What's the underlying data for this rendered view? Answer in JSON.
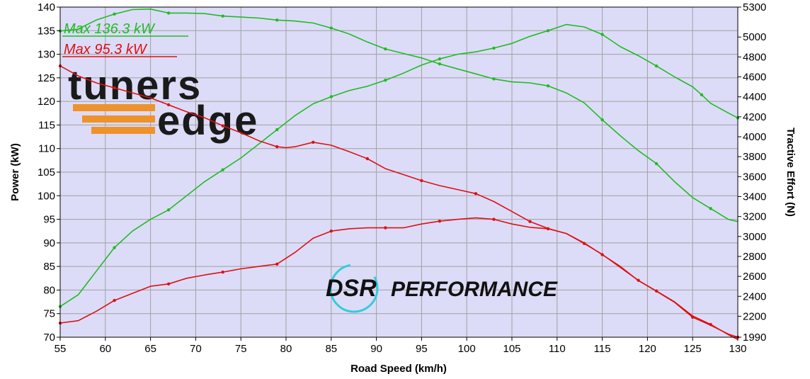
{
  "chart_data": {
    "type": "line",
    "xlabel": "Road Speed (km/h)",
    "ylabel": "Power (kW)",
    "y2label": "Tractive Effort (N)",
    "xlim": [
      55,
      130
    ],
    "ylim": [
      70,
      140
    ],
    "y2lim": [
      1990,
      5300
    ],
    "x_ticks": [
      55,
      60,
      65,
      70,
      75,
      80,
      85,
      90,
      95,
      100,
      105,
      110,
      115,
      120,
      125,
      130
    ],
    "y_ticks": [
      70,
      75,
      80,
      85,
      90,
      95,
      100,
      105,
      110,
      115,
      120,
      125,
      130,
      135,
      140
    ],
    "y2_ticks": [
      {
        "value": 1990,
        "label": "1990"
      },
      {
        "value": 2200,
        "label": "2200"
      },
      {
        "value": 2400,
        "label": "2400"
      },
      {
        "value": 2600,
        "label": "2600"
      },
      {
        "value": 2800,
        "label": "2800"
      },
      {
        "value": 3000,
        "label": "3000"
      },
      {
        "value": 3200,
        "label": "3200"
      },
      {
        "value": 3400,
        "label": "3400"
      },
      {
        "value": 3600,
        "label": "3600"
      },
      {
        "value": 3800,
        "label": "3800"
      },
      {
        "value": 4000,
        "label": "4000"
      },
      {
        "value": 4200,
        "label": "4200"
      },
      {
        "value": 4400,
        "label": "4400"
      },
      {
        "value": 4600,
        "label": "4600"
      },
      {
        "value": 4800,
        "label": "4800"
      },
      {
        "value": 5000,
        "label": "5000"
      },
      {
        "value": 5300,
        "label": "5300"
      }
    ],
    "grid": true,
    "annotations": [
      {
        "text": "Max 136.3 kW",
        "color": "#22bb22"
      },
      {
        "text": "Max 95.3 kW",
        "color": "#dd1111"
      }
    ],
    "series": [
      {
        "color": "#22bb22",
        "axis": "left",
        "kind": "power",
        "points": [
          [
            55,
            76.5
          ],
          [
            57,
            79
          ],
          [
            59,
            84
          ],
          [
            61,
            89
          ],
          [
            63,
            92.5
          ],
          [
            65,
            95
          ],
          [
            67,
            97
          ],
          [
            69,
            100
          ],
          [
            71,
            103
          ],
          [
            73,
            105.5
          ],
          [
            75,
            108
          ],
          [
            77,
            111
          ],
          [
            79,
            114
          ],
          [
            81,
            117
          ],
          [
            83,
            119.5
          ],
          [
            85,
            121
          ],
          [
            87,
            122.3
          ],
          [
            89,
            123.2
          ],
          [
            91,
            124.5
          ],
          [
            93,
            126
          ],
          [
            95,
            127.7
          ],
          [
            97,
            129
          ],
          [
            99,
            130
          ],
          [
            101,
            130.5
          ],
          [
            103,
            131.3
          ],
          [
            105,
            132.3
          ],
          [
            107,
            133.8
          ],
          [
            109,
            135
          ],
          [
            111,
            136.3
          ],
          [
            113,
            135.8
          ],
          [
            115,
            134.2
          ],
          [
            117,
            131.6
          ],
          [
            119,
            129.7
          ],
          [
            121,
            127.5
          ],
          [
            123,
            125.2
          ],
          [
            125,
            123.1
          ],
          [
            126,
            121.4
          ],
          [
            127,
            119.6
          ],
          [
            129,
            117.5
          ],
          [
            130,
            116.5
          ]
        ]
      },
      {
        "color": "#22bb22",
        "axis": "right",
        "kind": "tractive",
        "points": [
          [
            55,
            5060
          ],
          [
            57,
            5080
          ],
          [
            59,
            5170
          ],
          [
            61,
            5230
          ],
          [
            63,
            5275
          ],
          [
            65,
            5280
          ],
          [
            67,
            5240
          ],
          [
            69,
            5240
          ],
          [
            71,
            5235
          ],
          [
            73,
            5210
          ],
          [
            75,
            5200
          ],
          [
            77,
            5190
          ],
          [
            79,
            5170
          ],
          [
            81,
            5160
          ],
          [
            83,
            5140
          ],
          [
            85,
            5090
          ],
          [
            87,
            5030
          ],
          [
            89,
            4950
          ],
          [
            91,
            4880
          ],
          [
            93,
            4835
          ],
          [
            95,
            4790
          ],
          [
            97,
            4730
          ],
          [
            99,
            4680
          ],
          [
            101,
            4630
          ],
          [
            103,
            4580
          ],
          [
            105,
            4550
          ],
          [
            107,
            4540
          ],
          [
            109,
            4510
          ],
          [
            111,
            4440
          ],
          [
            113,
            4340
          ],
          [
            115,
            4170
          ],
          [
            117,
            4010
          ],
          [
            119,
            3860
          ],
          [
            121,
            3730
          ],
          [
            123,
            3550
          ],
          [
            125,
            3390
          ],
          [
            127,
            3280
          ],
          [
            129,
            3170
          ],
          [
            130,
            3150
          ]
        ]
      },
      {
        "color": "#dd1111",
        "axis": "left",
        "kind": "power",
        "points": [
          [
            55,
            73
          ],
          [
            57,
            73.5
          ],
          [
            59,
            75.5
          ],
          [
            61,
            77.8
          ],
          [
            63,
            79.3
          ],
          [
            65,
            80.8
          ],
          [
            67,
            81.3
          ],
          [
            69,
            82.5
          ],
          [
            71,
            83.2
          ],
          [
            73,
            83.8
          ],
          [
            75,
            84.5
          ],
          [
            77,
            85
          ],
          [
            79,
            85.5
          ],
          [
            81,
            88
          ],
          [
            83,
            91
          ],
          [
            85,
            92.5
          ],
          [
            87,
            93
          ],
          [
            89,
            93.2
          ],
          [
            91,
            93.2
          ],
          [
            93,
            93.2
          ],
          [
            95,
            94
          ],
          [
            97,
            94.6
          ],
          [
            99,
            95
          ],
          [
            101,
            95.3
          ],
          [
            103,
            95
          ],
          [
            105,
            94
          ],
          [
            107,
            93.3
          ],
          [
            109,
            93
          ],
          [
            111,
            92
          ],
          [
            113,
            90
          ],
          [
            115,
            87.5
          ],
          [
            117,
            85
          ],
          [
            119,
            82
          ],
          [
            121,
            79.8
          ],
          [
            123,
            77.5
          ],
          [
            125,
            74.5
          ],
          [
            127,
            72.7
          ],
          [
            129,
            70.5
          ],
          [
            130,
            69.5
          ]
        ]
      },
      {
        "color": "#dd1111",
        "axis": "right",
        "kind": "tractive",
        "points": [
          [
            55,
            4710
          ],
          [
            57,
            4610
          ],
          [
            59,
            4540
          ],
          [
            61,
            4490
          ],
          [
            63,
            4440
          ],
          [
            65,
            4390
          ],
          [
            67,
            4320
          ],
          [
            69,
            4250
          ],
          [
            71,
            4190
          ],
          [
            73,
            4110
          ],
          [
            75,
            4040
          ],
          [
            77,
            3960
          ],
          [
            79,
            3900
          ],
          [
            80,
            3890
          ],
          [
            81,
            3900
          ],
          [
            83,
            3945
          ],
          [
            85,
            3915
          ],
          [
            87,
            3850
          ],
          [
            89,
            3780
          ],
          [
            91,
            3680
          ],
          [
            93,
            3620
          ],
          [
            95,
            3560
          ],
          [
            97,
            3510
          ],
          [
            99,
            3470
          ],
          [
            101,
            3430
          ],
          [
            103,
            3350
          ],
          [
            105,
            3250
          ],
          [
            107,
            3150
          ],
          [
            109,
            3080
          ],
          [
            111,
            3030
          ],
          [
            113,
            2930
          ],
          [
            115,
            2820
          ],
          [
            117,
            2690
          ],
          [
            119,
            2560
          ],
          [
            121,
            2450
          ],
          [
            123,
            2340
          ],
          [
            125,
            2190
          ],
          [
            127,
            2110
          ],
          [
            129,
            2020
          ],
          [
            130,
            1990
          ]
        ]
      }
    ]
  },
  "logos": {
    "tunersedge": {
      "line1": "tuners",
      "line2": "edge"
    },
    "dsr": {
      "word1": "DSR",
      "word2": "PERFORMANCE"
    }
  }
}
